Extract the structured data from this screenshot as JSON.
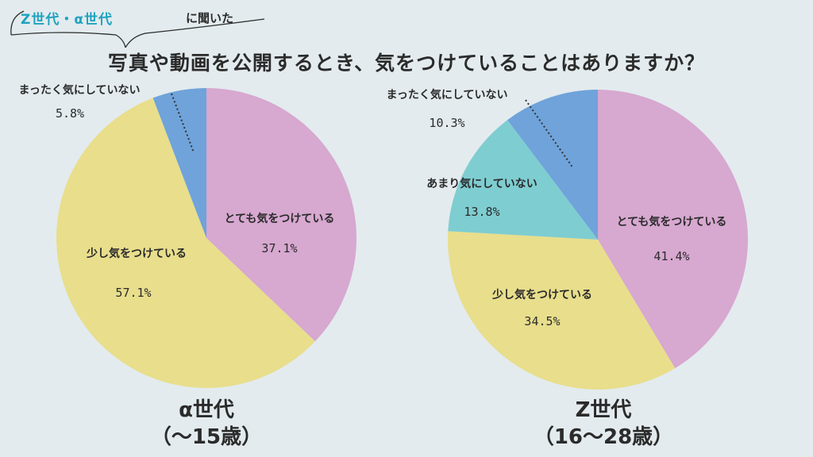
{
  "header": {
    "tag_highlight": "Z世代・α世代",
    "tag_suffix": "に聞いた",
    "title": "写真や動画を公開するとき、気をつけていることはありますか？"
  },
  "colors": {
    "pink": "#d7a8d0",
    "yellow": "#e8de8c",
    "blue": "#6fa3da",
    "teal": "#7ecdd1",
    "background": "#e3ebee",
    "accent": "#1ea3bf"
  },
  "chart_data": [
    {
      "type": "pie",
      "title": "α世代",
      "subtitle": "（〜15歳）",
      "slices": [
        {
          "label": "とても気をつけている",
          "value": 37.1,
          "display": "37.1%",
          "color": "#d7a8d0"
        },
        {
          "label": "少し気をつけている",
          "value": 57.1,
          "display": "57.1%",
          "color": "#e8de8c"
        },
        {
          "label": "まったく気にしていない",
          "value": 5.8,
          "display": "5.8%",
          "color": "#6fa3da"
        }
      ]
    },
    {
      "type": "pie",
      "title": "Z世代",
      "subtitle": "（16〜28歳）",
      "slices": [
        {
          "label": "とても気をつけている",
          "value": 41.4,
          "display": "41.4%",
          "color": "#d7a8d0"
        },
        {
          "label": "少し気をつけている",
          "value": 34.5,
          "display": "34.5%",
          "color": "#e8de8c"
        },
        {
          "label": "あまり気にしていない",
          "value": 13.8,
          "display": "13.8%",
          "color": "#7ecdd1"
        },
        {
          "label": "まったく気にしていない",
          "value": 10.3,
          "display": "10.3%",
          "color": "#6fa3da"
        }
      ]
    }
  ]
}
